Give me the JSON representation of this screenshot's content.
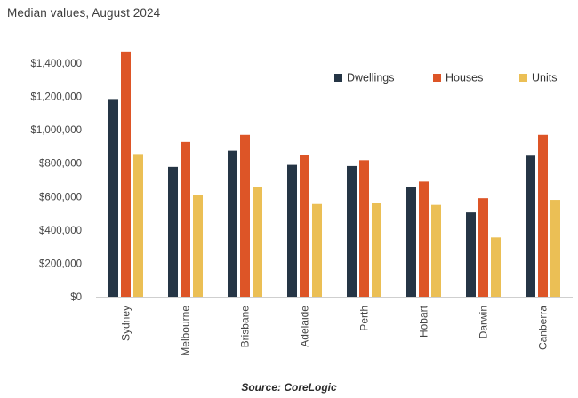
{
  "title": "Median values, August 2024",
  "source": "Source: CoreLogic",
  "colors": {
    "Dwellings": "#253545",
    "Houses": "#dd5527",
    "Units": "#ebbf55"
  },
  "chart_data": {
    "type": "bar",
    "title": "Median values, August 2024",
    "categories": [
      "Sydney",
      "Melbourne",
      "Brisbane",
      "Adelaide",
      "Perth",
      "Hobart",
      "Darwin",
      "Canberra"
    ],
    "series": [
      {
        "name": "Dwellings",
        "values": [
          1185000,
          778000,
          875000,
          790000,
          783000,
          655000,
          505000,
          845000
        ]
      },
      {
        "name": "Houses",
        "values": [
          1470000,
          927000,
          970000,
          847000,
          818000,
          690000,
          590000,
          970000
        ]
      },
      {
        "name": "Units",
        "values": [
          855000,
          608000,
          655000,
          555000,
          562000,
          550000,
          355000,
          580000
        ]
      }
    ],
    "ylim": [
      0,
      1400000
    ],
    "yticks": [
      "$0",
      "$200,000",
      "$400,000",
      "$600,000",
      "$800,000",
      "$1,000,000",
      "$1,200,000",
      "$1,400,000"
    ],
    "ytick_values": [
      0,
      200000,
      400000,
      600000,
      800000,
      1000000,
      1200000,
      1400000
    ],
    "legend_position": "top-right",
    "grid": false,
    "xlabel": "",
    "ylabel": ""
  }
}
